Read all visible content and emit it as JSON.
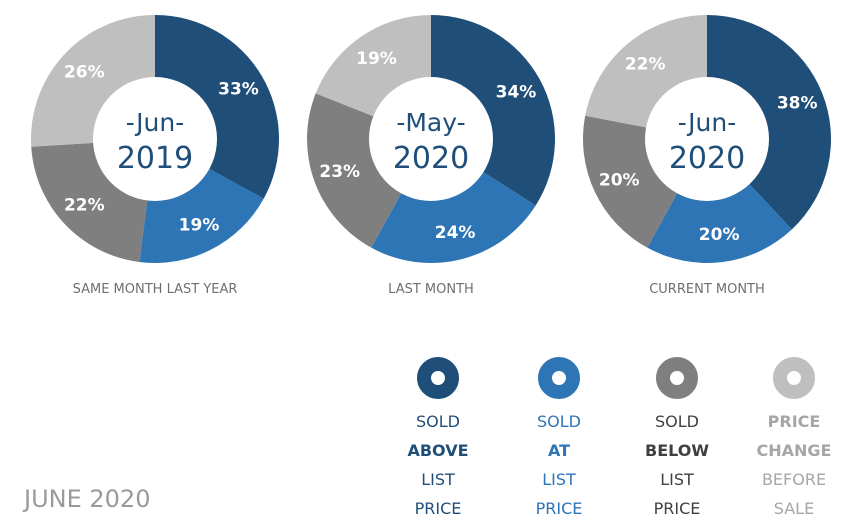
{
  "title": "JUNE 2020",
  "colors": {
    "sold_above": "#1f4e79",
    "sold_at": "#2e75b6",
    "sold_below": "#7f7f7f",
    "price_change": "#bfbfbf",
    "below_text": "#404040",
    "price_change_text": "#a6a6a6"
  },
  "chart_data": [
    {
      "type": "pie",
      "variant": "donut",
      "center_month": "-Jun-",
      "center_year": "2019",
      "caption": "SAME MONTH LAST YEAR",
      "categories": [
        "Sold Above List Price",
        "Sold At List Price",
        "Sold Below List Price",
        "Price Change Before Sale"
      ],
      "values": [
        33,
        19,
        22,
        26
      ],
      "labels": [
        "33%",
        "19%",
        "22%",
        "26%"
      ]
    },
    {
      "type": "pie",
      "variant": "donut",
      "center_month": "-May-",
      "center_year": "2020",
      "caption": "LAST MONTH",
      "categories": [
        "Sold Above List Price",
        "Sold At List Price",
        "Sold Below List Price",
        "Price Change Before Sale"
      ],
      "values": [
        34,
        24,
        23,
        19
      ],
      "labels": [
        "34%",
        "24%",
        "23%",
        "19%"
      ]
    },
    {
      "type": "pie",
      "variant": "donut",
      "center_month": "-Jun-",
      "center_year": "2020",
      "caption": "CURRENT MONTH",
      "categories": [
        "Sold Above List Price",
        "Sold At List Price",
        "Sold Below List Price",
        "Price Change Before Sale"
      ],
      "values": [
        38,
        20,
        20,
        22
      ],
      "labels": [
        "38%",
        "20%",
        "20%",
        "22%"
      ]
    }
  ],
  "legend": [
    {
      "key": "sold_above",
      "icon": "donut-icon",
      "lines": [
        "SOLD",
        "ABOVE",
        "LIST",
        "PRICE"
      ],
      "bold_line": 1
    },
    {
      "key": "sold_at",
      "icon": "donut-icon",
      "lines": [
        "SOLD",
        "AT",
        "LIST",
        "PRICE"
      ],
      "bold_line": 1
    },
    {
      "key": "sold_below",
      "icon": "donut-icon",
      "lines": [
        "SOLD",
        "BELOW",
        "LIST",
        "PRICE"
      ],
      "bold_line": 1
    },
    {
      "key": "price_change",
      "icon": "donut-icon",
      "lines": [
        "PRICE",
        "CHANGE",
        "BEFORE",
        "SALE"
      ],
      "bold_line": [
        0,
        1
      ]
    }
  ]
}
